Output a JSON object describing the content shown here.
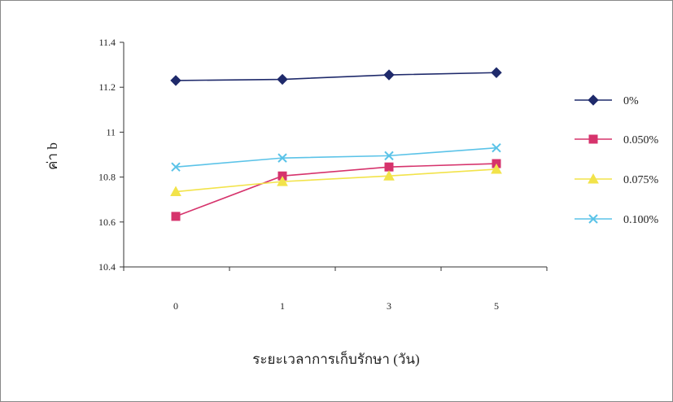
{
  "chart_data": {
    "type": "line",
    "categories": [
      "0",
      "1",
      "3",
      "5"
    ],
    "series": [
      {
        "name": "0%",
        "values": [
          11.23,
          11.235,
          11.255,
          11.265
        ],
        "color": "#1f2a6b",
        "marker": "diamond"
      },
      {
        "name": "0.050%",
        "values": [
          10.625,
          10.805,
          10.845,
          10.86
        ],
        "color": "#d6336c",
        "marker": "square"
      },
      {
        "name": "0.075%",
        "values": [
          10.735,
          10.78,
          10.805,
          10.835
        ],
        "color": "#f2e34a",
        "marker": "triangle"
      },
      {
        "name": "0.100%",
        "values": [
          10.845,
          10.885,
          10.895,
          10.93
        ],
        "color": "#5bc3e8",
        "marker": "x"
      }
    ],
    "xlabel": "ระยะเวลาการเก็บรักษา (วัน)",
    "ylabel": "ค่า b",
    "ylim": [
      10.4,
      11.4
    ],
    "yticks": [
      "10.4",
      "10.6",
      "10.8",
      "11",
      "11.2",
      "11.4"
    ],
    "grid": false,
    "legend": "right"
  }
}
